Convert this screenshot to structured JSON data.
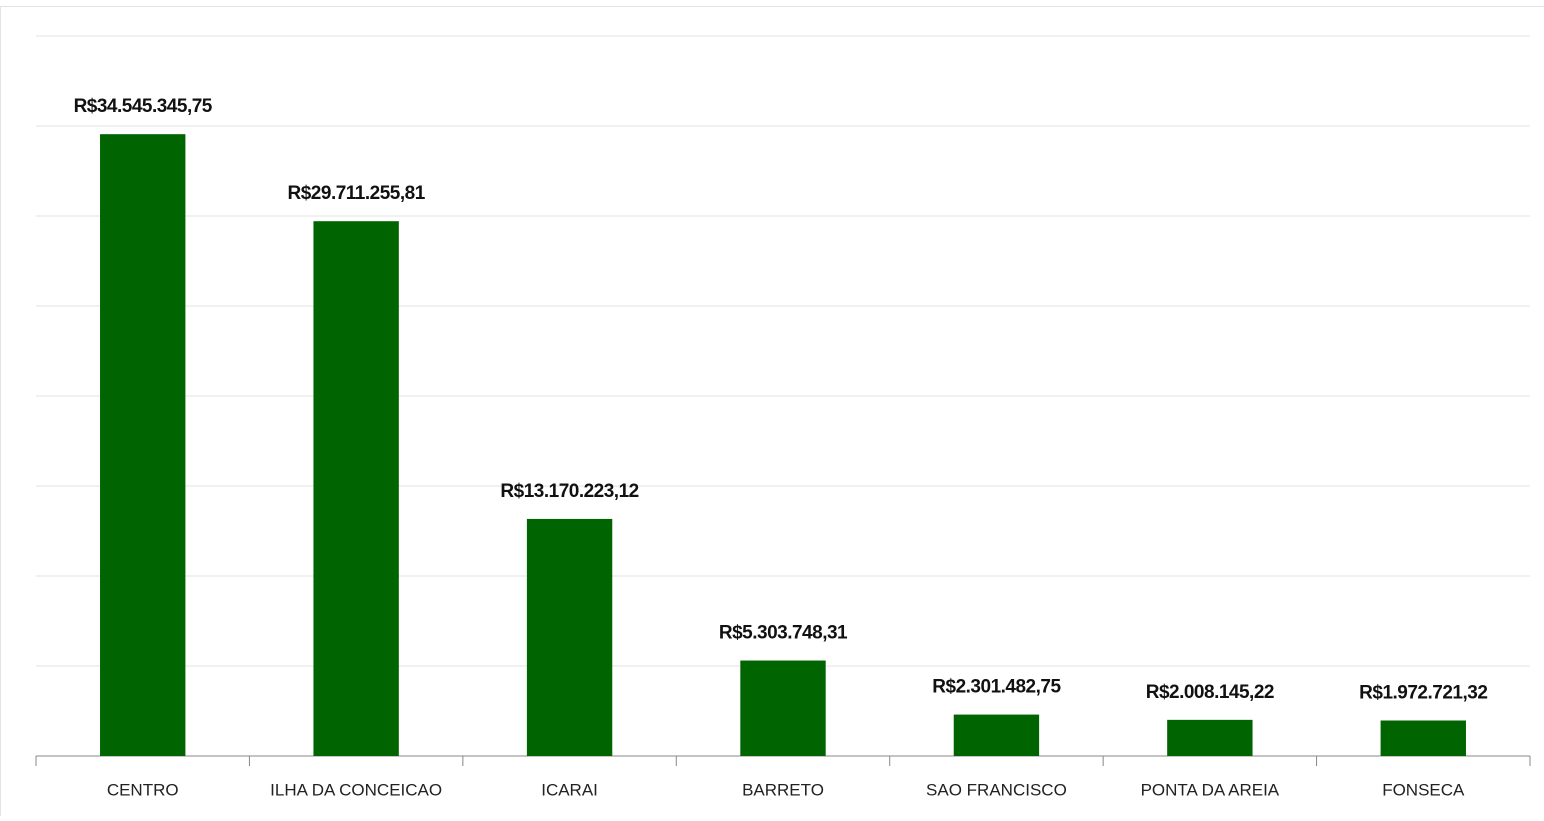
{
  "chart_data": {
    "type": "bar",
    "categories": [
      "CENTRO",
      "ILHA DA CONCEICAO",
      "ICARAI",
      "BARRETO",
      "SAO FRANCISCO",
      "PONTA DA AREIA",
      "FONSECA"
    ],
    "values": [
      34545345.75,
      29711255.81,
      13170223.12,
      5303748.31,
      2301482.75,
      2008145.22,
      1972721.32
    ],
    "value_labels": [
      "R$34.545.345,75",
      "R$29.711.255,81",
      "R$13.170.223,12",
      "R$5.303.748,31",
      "R$2.301.482,75",
      "R$2.008.145,22",
      "R$1.972.721,32"
    ],
    "color": "#006400",
    "ylim": [
      0,
      40000000
    ],
    "yticks": [
      0,
      5000000,
      10000000,
      15000000,
      20000000,
      25000000,
      30000000,
      35000000,
      40000000
    ],
    "grid": true
  }
}
